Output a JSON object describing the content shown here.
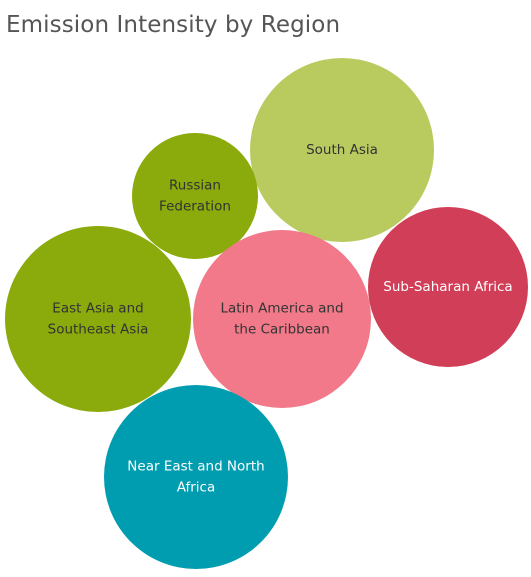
{
  "chart_data": {
    "type": "bubble",
    "title": "Emission Intensity by Region",
    "bubbles": [
      {
        "name": "South Asia",
        "label_lines": [
          "South Asia"
        ],
        "color": "#b9cb5f",
        "text_color": "#333333"
      },
      {
        "name": "Russian Federation",
        "label_lines": [
          "Russian",
          "Federation"
        ],
        "color": "#8aab0b",
        "text_color": "#333333"
      },
      {
        "name": "East Asia and Southeast Asia",
        "label_lines": [
          "East Asia and",
          "Southeast Asia"
        ],
        "color": "#8aab0b",
        "text_color": "#333333"
      },
      {
        "name": "Latin America and the Caribbean",
        "label_lines": [
          "Latin America and",
          "the Caribbean"
        ],
        "color": "#f1798a",
        "text_color": "#333333"
      },
      {
        "name": "Sub-Saharan Africa",
        "label_lines": [
          "Sub-Saharan Africa"
        ],
        "color": "#d03e57",
        "text_color": "#ffffff"
      },
      {
        "name": "Near East and North Africa",
        "label_lines": [
          "Near East and North",
          "Africa"
        ],
        "color": "#009db0",
        "text_color": "#ffffff"
      }
    ]
  }
}
